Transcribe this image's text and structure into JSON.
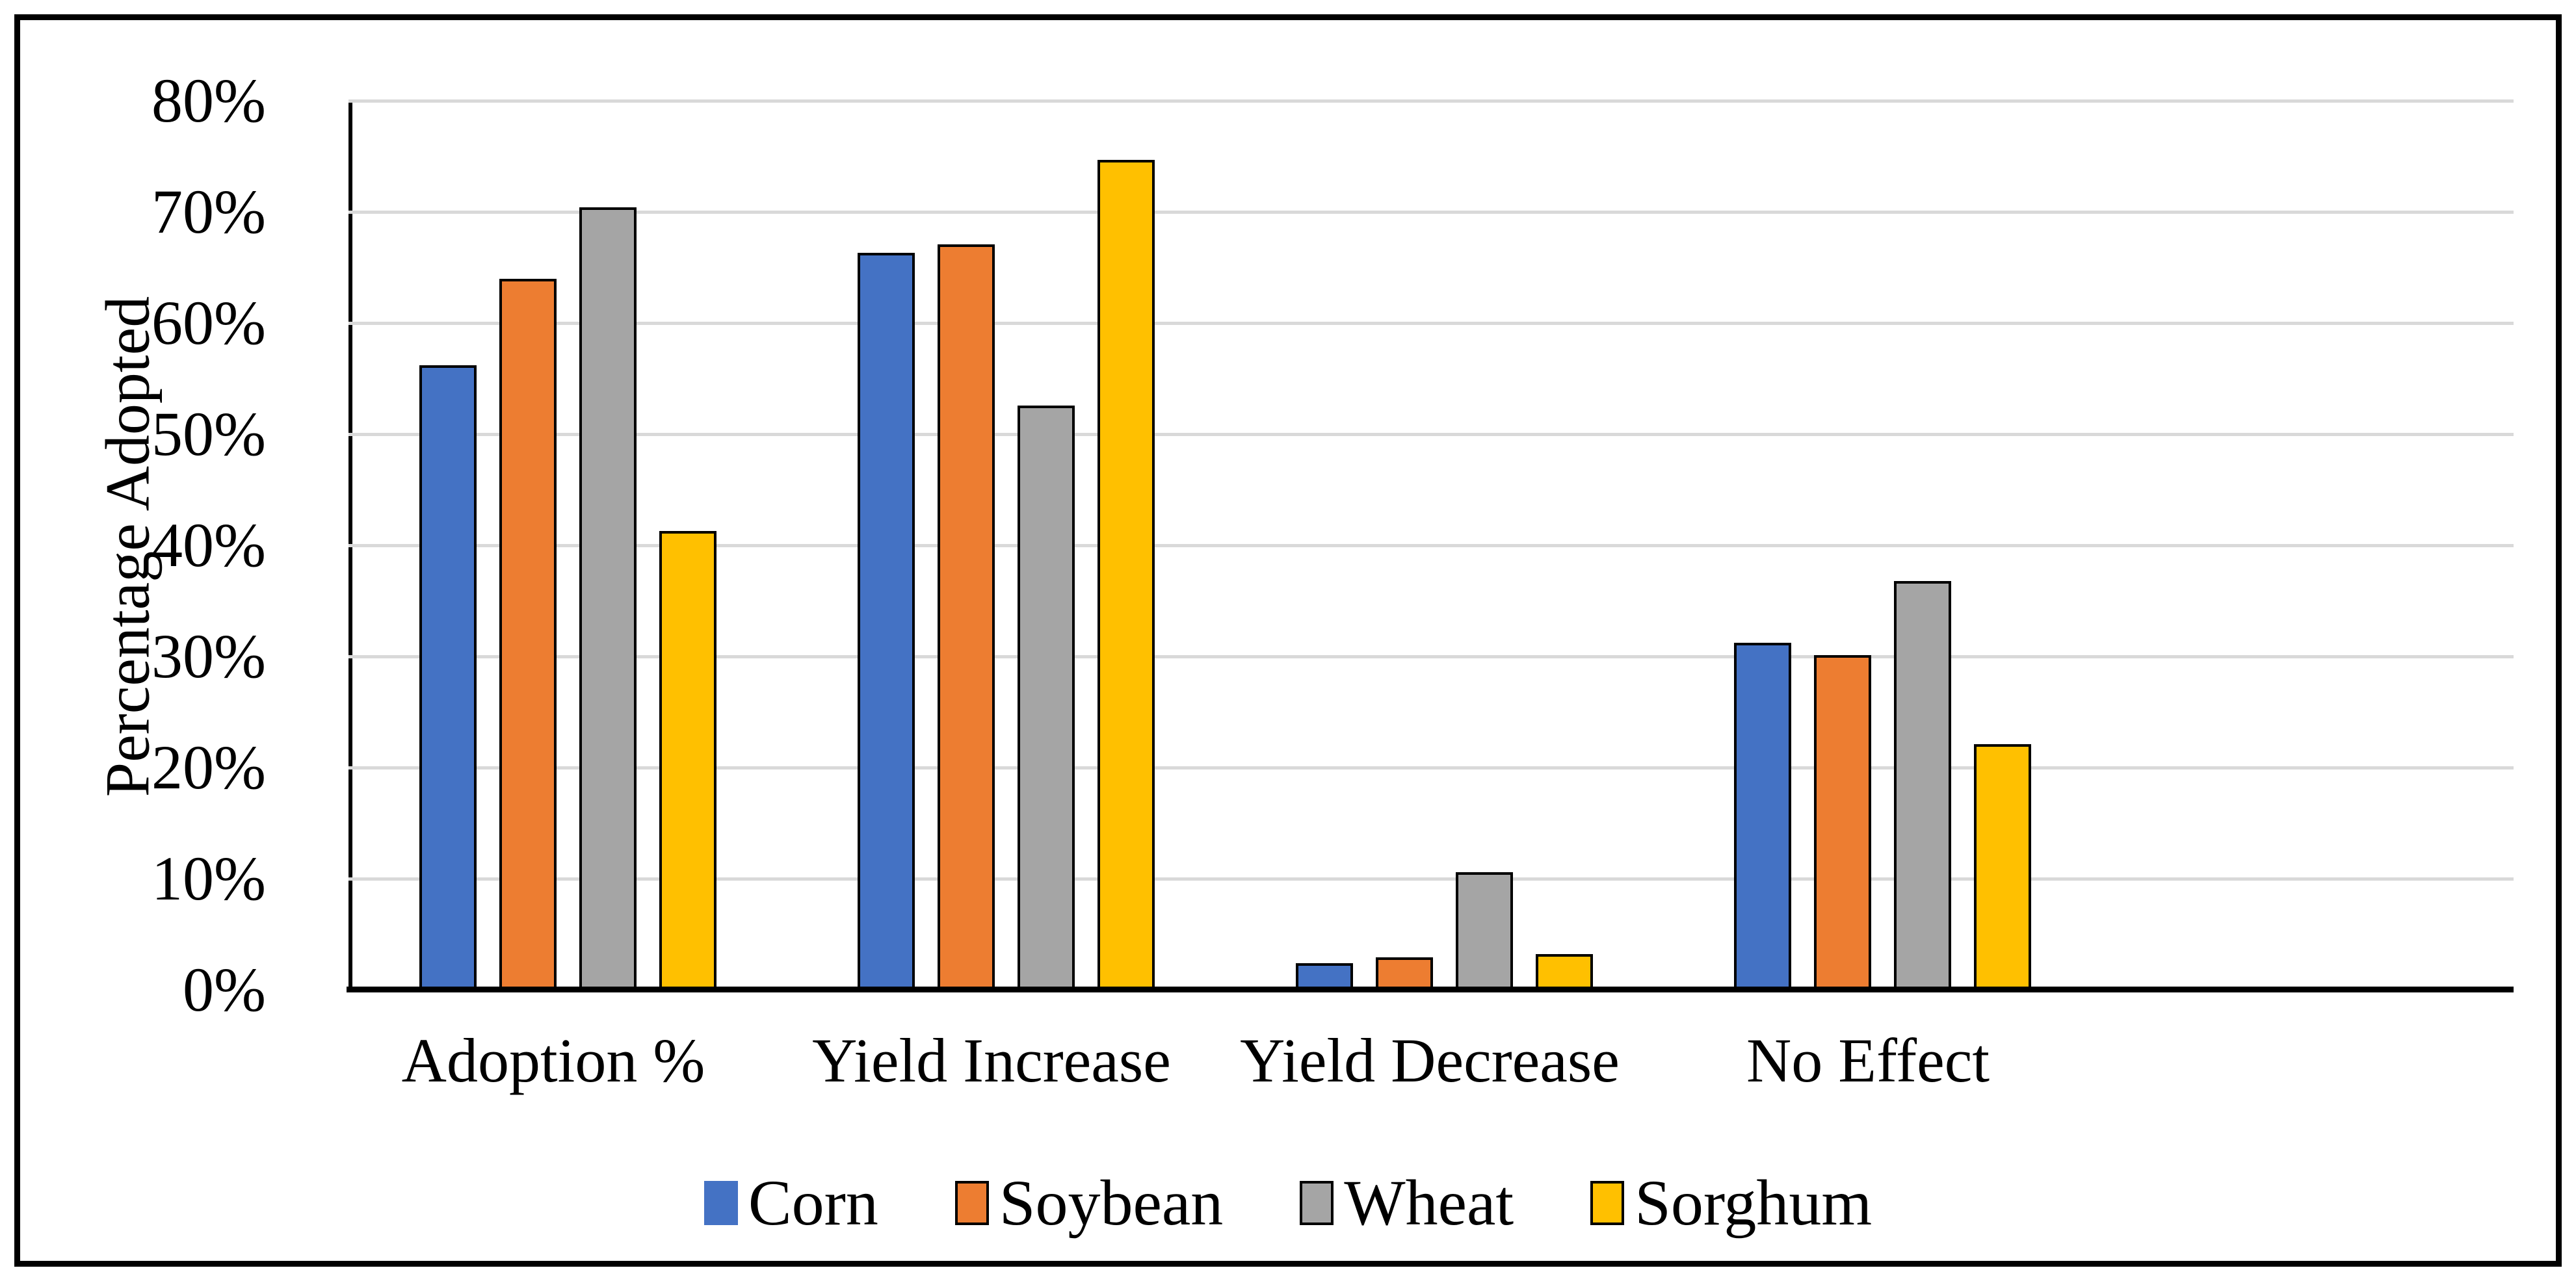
{
  "chart_data": {
    "type": "bar",
    "title": "",
    "ylabel": "Percentage Adopted",
    "xlabel": "",
    "categories": [
      "Adoption %",
      "Yield Increase",
      "Yield Decrease",
      "No Effect"
    ],
    "series": [
      {
        "name": "Corn",
        "color": "#4472C4",
        "legend_outline": false,
        "values": [
          56.2,
          66.3,
          2.4,
          31.2
        ]
      },
      {
        "name": "Soybean",
        "color": "#ED7D31",
        "legend_outline": true,
        "values": [
          64.0,
          67.1,
          2.9,
          30.1
        ]
      },
      {
        "name": "Wheat",
        "color": "#A5A5A5",
        "legend_outline": true,
        "values": [
          70.4,
          52.6,
          10.6,
          36.8
        ]
      },
      {
        "name": "Sorghum",
        "color": "#FFC000",
        "legend_outline": true,
        "values": [
          41.3,
          74.7,
          3.2,
          22.1
        ]
      }
    ],
    "ylim": [
      0,
      80
    ],
    "ytick_step": 10,
    "ytick_labels": [
      "0%",
      "10%",
      "20%",
      "30%",
      "40%",
      "50%",
      "60%",
      "70%",
      "80%"
    ],
    "grid": true,
    "gridline_color": "#D9D9D9",
    "axis_color": "#000000",
    "bar_outline_color": "#000000",
    "legend_position": "bottom",
    "frame_border_color": "#000000"
  }
}
